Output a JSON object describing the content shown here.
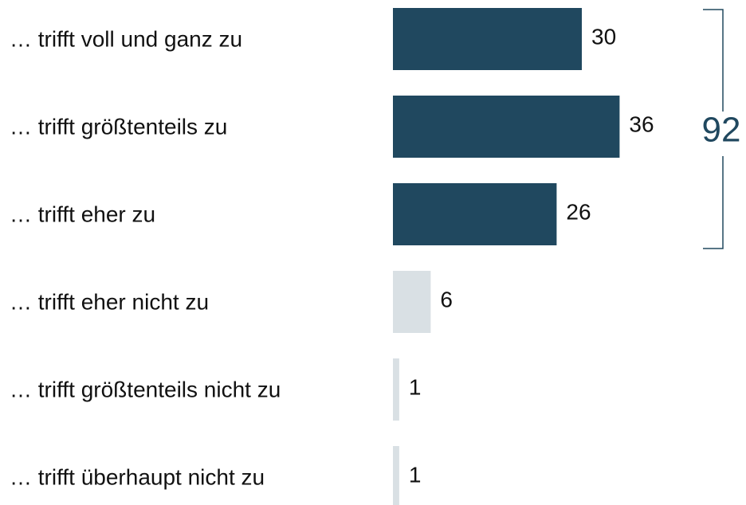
{
  "chart_data": {
    "type": "bar",
    "categories": [
      "… trifft voll und ganz zu",
      "… trifft größtenteils zu",
      "… trifft eher zu",
      "… trifft eher nicht zu",
      "… trifft größtenteils nicht zu",
      "… trifft überhaupt nicht zu"
    ],
    "values": [
      30,
      36,
      26,
      6,
      1,
      1
    ],
    "colors": [
      "#20485f",
      "#20485f",
      "#20485f",
      "#d9e0e4",
      "#d9e0e4",
      "#d9e0e4"
    ],
    "annotation": "92"
  }
}
